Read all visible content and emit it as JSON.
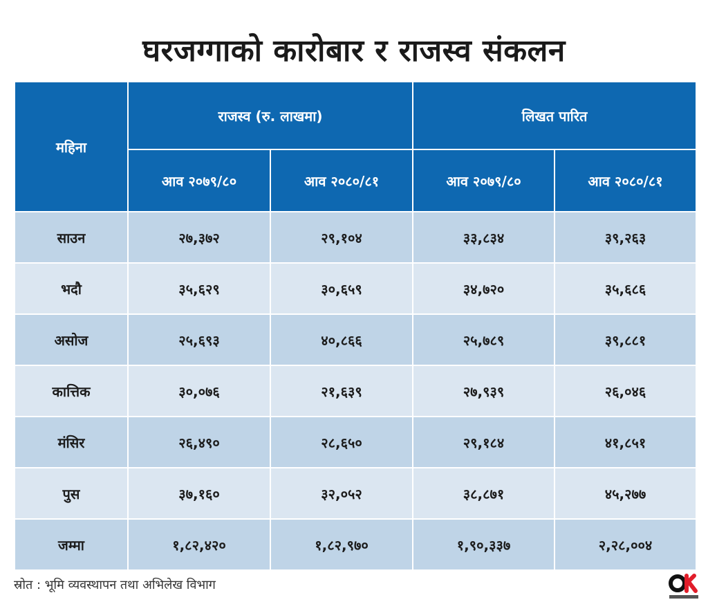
{
  "title": "घरजग्गाको कारोबार र राजस्व संकलन",
  "chart_data": {
    "type": "table",
    "title": "घरजग्गाको कारोबार र राजस्व संकलन",
    "row_header_label": "महिना",
    "groups": [
      {
        "label": "राजस्व (रु. लाखमा)",
        "columns": [
          "आव २०७९/८०",
          "आव २०८०/८१"
        ]
      },
      {
        "label": "लिखत पारित",
        "columns": [
          "आव २०७९/८०",
          "आव २०८०/८१"
        ]
      }
    ],
    "rows": [
      {
        "month": "साउन",
        "values": [
          "२७,३७२",
          "२९,१०४",
          "३३,८३४",
          "३९,२६३"
        ]
      },
      {
        "month": "भदौ",
        "values": [
          "३५,६२९",
          "३०,६५९",
          "३४,७२०",
          "३५,६८६"
        ]
      },
      {
        "month": "असोज",
        "values": [
          "२५,६९३",
          "४०,८६६",
          "२५,७८९",
          "३९,८८१"
        ]
      },
      {
        "month": "कात्तिक",
        "values": [
          "३०,०७६",
          "२१,६३९",
          "२७,९३९",
          "२६,०४६"
        ]
      },
      {
        "month": "मंसिर",
        "values": [
          "२६,४९०",
          "२८,६५०",
          "२९,१८४",
          "४१,८५१"
        ]
      },
      {
        "month": "पुस",
        "values": [
          "३७,१६०",
          "३२,०५२",
          "३८,८७१",
          "४५,२७७"
        ]
      },
      {
        "month": "जम्मा",
        "values": [
          "१,८२,४२०",
          "१,८२,९७०",
          "१,९०,३३७",
          "२,२८,००४"
        ]
      }
    ]
  },
  "source": "स्रोत : भूमि व्यवस्थापन तथा अभिलेख विभाग",
  "logo": {
    "icon": "ok-logo-icon",
    "color_black": "#111111",
    "color_red": "#e11d2a"
  },
  "colors": {
    "header": "#0e68b1",
    "row_dark": "#bfd4e7",
    "row_light": "#dbe6f1"
  }
}
